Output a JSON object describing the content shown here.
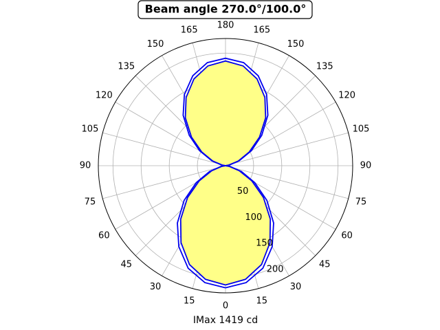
{
  "chart_data": {
    "type": "polar",
    "title": "Beam angle 270.0°/100.0°",
    "xlabel": "IMax 1419 cd",
    "rlim": [
      0,
      226
    ],
    "rticks": [
      50,
      100,
      150,
      200
    ],
    "thetaticks": [
      0,
      15,
      30,
      45,
      60,
      75,
      90,
      105,
      120,
      135,
      150,
      165,
      180,
      {
        "value": 195,
        "label": "165"
      },
      {
        "value": 210,
        "label": "150"
      },
      {
        "value": 225,
        "label": "135"
      },
      {
        "value": 240,
        "label": "120"
      },
      {
        "value": 255,
        "label": "105"
      },
      {
        "value": 270,
        "label": "90"
      },
      {
        "value": 285,
        "label": "75"
      },
      {
        "value": 300,
        "label": "60"
      },
      {
        "value": 315,
        "label": "45"
      },
      {
        "value": 330,
        "label": "30"
      },
      {
        "value": 345,
        "label": "15"
      }
    ],
    "grid": true,
    "series": [
      {
        "color": "#0000ee",
        "fill": "#ffff88",
        "theta": [
          0,
          10,
          20,
          30,
          40,
          50,
          60,
          70,
          80,
          90,
          100,
          110,
          120,
          130,
          140,
          150,
          160,
          170,
          180,
          190,
          200,
          210,
          220,
          230,
          240,
          250,
          260,
          270,
          280,
          290,
          300,
          310,
          320,
          330,
          340,
          350,
          360
        ],
        "values": [
          212,
          205,
          187,
          158,
          124,
          88,
          54,
          26,
          7,
          0,
          6,
          24,
          49,
          79,
          111,
          140,
          164,
          180,
          186,
          180,
          164,
          140,
          111,
          79,
          49,
          24,
          6,
          0,
          7,
          26,
          54,
          88,
          124,
          158,
          187,
          205,
          212
        ]
      },
      {
        "color": "#0000ee",
        "theta": [
          0,
          10,
          20,
          30,
          40,
          50,
          60,
          70,
          80,
          90,
          100,
          110,
          120,
          130,
          140,
          150,
          160,
          170,
          180,
          190,
          200,
          210,
          220,
          230,
          240,
          250,
          260,
          270,
          280,
          290,
          300,
          310,
          320,
          330,
          340,
          350,
          360
        ],
        "values": [
          217,
          211,
          194,
          166,
          133,
          96,
          60,
          30,
          8,
          0,
          7,
          26,
          53,
          84,
          117,
          146,
          170,
          186,
          191,
          186,
          170,
          146,
          117,
          84,
          53,
          26,
          7,
          0,
          8,
          30,
          60,
          96,
          133,
          166,
          194,
          211,
          217
        ]
      }
    ]
  }
}
